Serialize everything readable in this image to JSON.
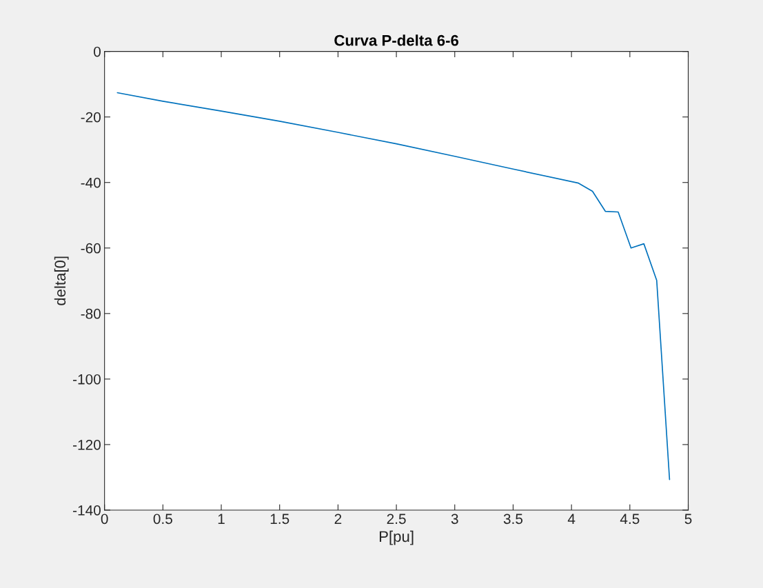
{
  "chart_data": {
    "type": "line",
    "title": "Curva P-delta 6-6",
    "xlabel": "P[pu]",
    "ylabel": "delta[0]",
    "x": [
      0.11,
      0.5,
      1.0,
      1.5,
      2.0,
      2.5,
      3.0,
      3.5,
      4.06,
      4.18,
      4.29,
      4.4,
      4.51,
      4.62,
      4.73,
      4.84
    ],
    "series": [
      {
        "color": "#0072bd",
        "values": [
          -12.6,
          -15.2,
          -18.2,
          -21.3,
          -24.7,
          -28.2,
          -32.0,
          -35.9,
          -40.2,
          -42.7,
          -48.8,
          -49.0,
          -60.0,
          -58.7,
          -69.9,
          -130.7
        ]
      }
    ],
    "xlim": [
      0,
      5
    ],
    "ylim": [
      -140,
      0
    ],
    "xticks": [
      0,
      0.5,
      1,
      1.5,
      2,
      2.5,
      3,
      3.5,
      4,
      4.5,
      5
    ],
    "yticks": [
      -140,
      -120,
      -100,
      -80,
      -60,
      -40,
      -20,
      0
    ],
    "grid": false,
    "legend": false,
    "marker": "none",
    "line_style": "solid"
  }
}
